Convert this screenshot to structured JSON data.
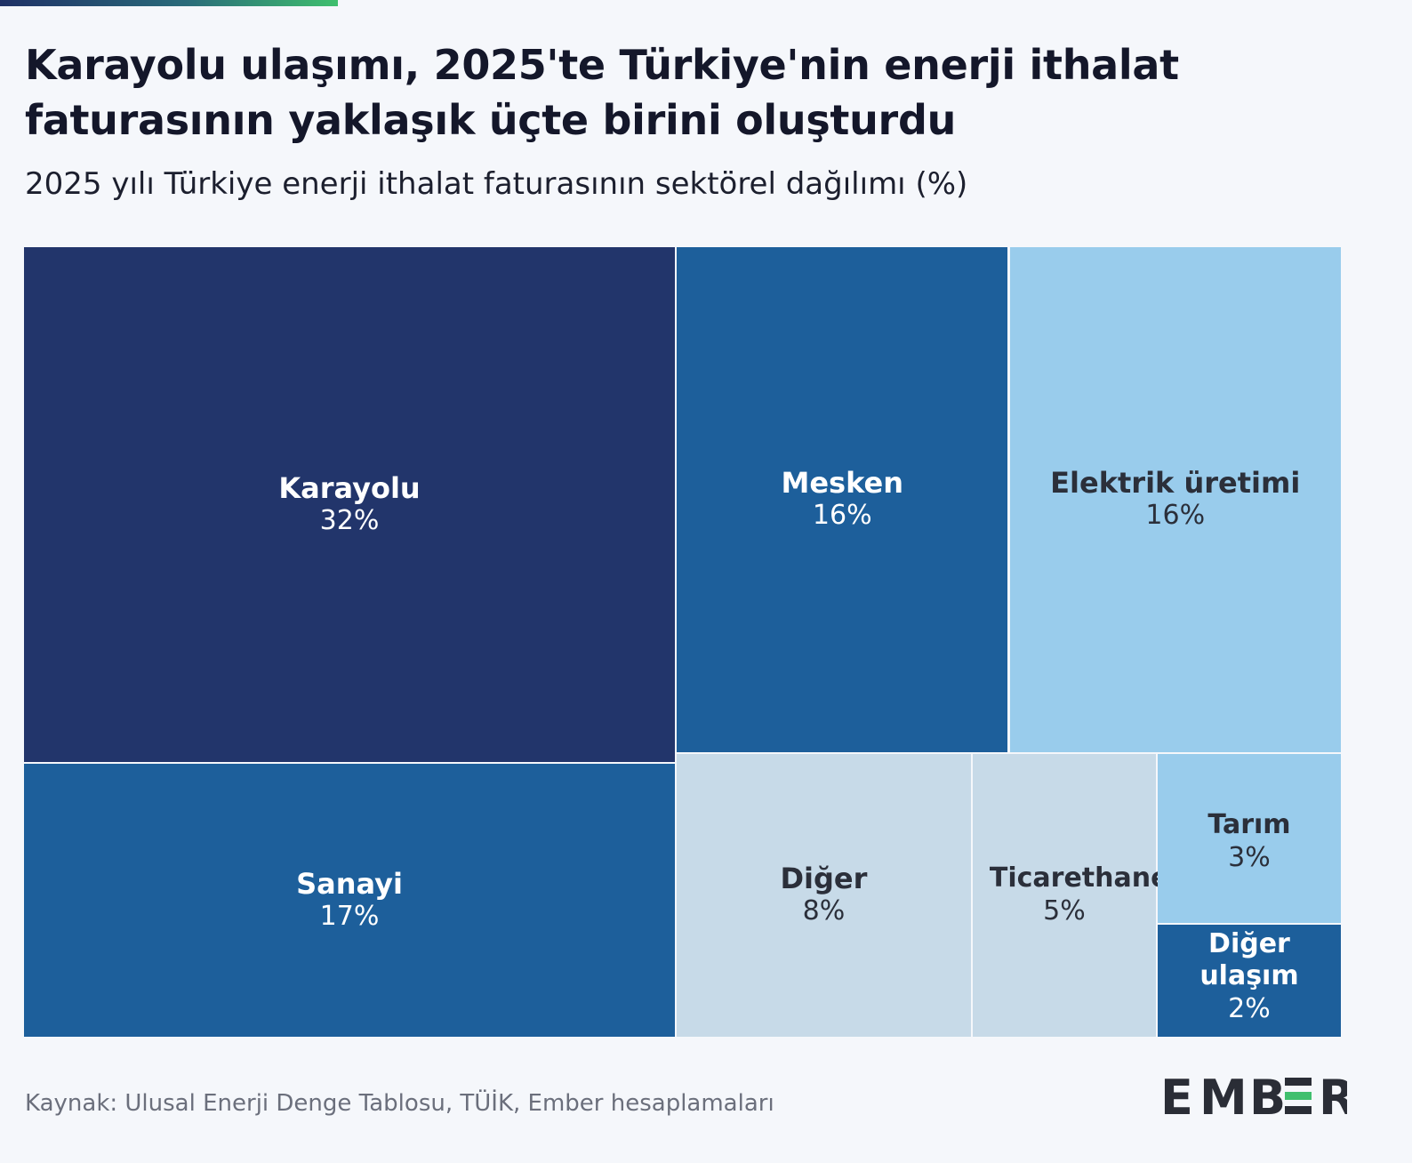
{
  "title": "Karayolu ulaşımı, 2025'te Türkiye'nin enerji ithalat faturasının yaklaşık üçte birini oluşturdu",
  "subtitle": "2025 yılı Türkiye enerji ithalat faturasının sektörel dağılımı (%)",
  "source": "Kaynak: Ulusal Enerji Denge Tablosu, TÜİK, Ember hesaplamaları",
  "logo_text": "EMBER",
  "colors": {
    "navy": "#22356b",
    "mid_blue": "#1d5f9b",
    "light_blue": "#99ccec",
    "pale_blue": "#c7dae8",
    "dark_text": "#2b2f3a",
    "white_text": "#ffffff",
    "logo_dark": "#2a2d36",
    "logo_green": "#3fbf6e"
  },
  "chart_data": {
    "type": "treemap",
    "title": "Karayolu ulaşımı, 2025'te Türkiye'nin enerji ithalat faturasının yaklaşık üçte birini oluşturdu",
    "subtitle": "2025 yılı Türkiye enerji ithalat faturasının sektörel dağılımı (%)",
    "unit": "%",
    "items": [
      {
        "name": "Karayolu",
        "value": 32,
        "value_label": "32%",
        "color": "navy"
      },
      {
        "name": "Sanayi",
        "value": 17,
        "value_label": "17%",
        "color": "mid_blue"
      },
      {
        "name": "Mesken",
        "value": 16,
        "value_label": "16%",
        "color": "mid_blue"
      },
      {
        "name": "Elektrik üretimi",
        "value": 16,
        "value_label": "16%",
        "color": "light_blue"
      },
      {
        "name": "Diğer",
        "value": 8,
        "value_label": "8%",
        "color": "pale_blue"
      },
      {
        "name": "Ticarethane",
        "value": 5,
        "value_label": "5%",
        "color": "pale_blue"
      },
      {
        "name": "Tarım",
        "value": 3,
        "value_label": "3%",
        "color": "light_blue"
      },
      {
        "name": "Diğer ulaşım",
        "value": 2,
        "value_label": "2%",
        "color": "mid_blue"
      }
    ]
  }
}
